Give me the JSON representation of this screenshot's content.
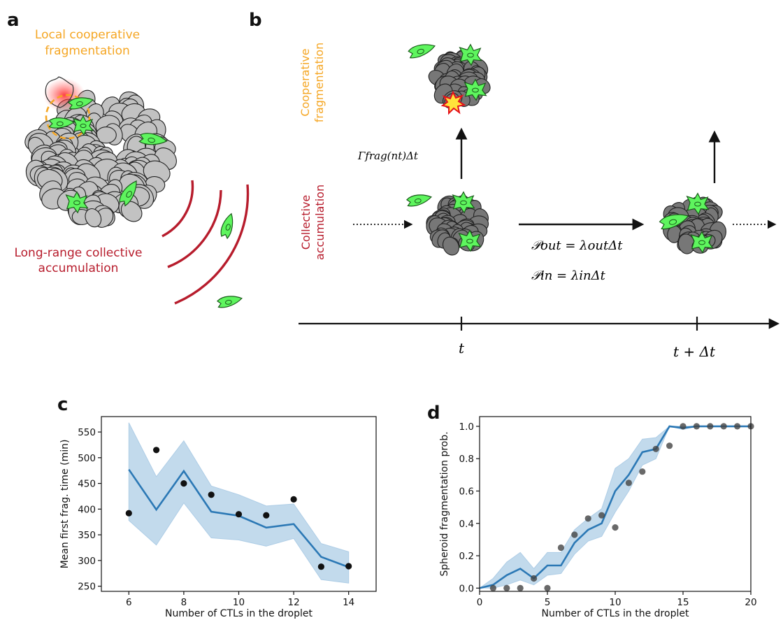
{
  "panels": {
    "a": {
      "letter": "a",
      "label_top": [
        "Local cooperative",
        "fragmentation"
      ],
      "label_bottom": [
        "Long-range collective",
        "accumulation"
      ],
      "colors": {
        "orange": "#f5a623",
        "red": "#b71c2c",
        "cell": "#c2c2c2",
        "ctl": "#5ef55e"
      }
    },
    "b": {
      "letter": "b",
      "row_top": [
        "Cooperative",
        "fragmentation"
      ],
      "row_bottom": [
        "Collective",
        "accumulation"
      ],
      "rate_label": "Γfrag(nt)Δt",
      "p_out": "𝒫out = λoutΔt",
      "p_in": "𝒫in = λinΔt",
      "tick_t": "t",
      "tick_t_dt": "t + Δt",
      "colors": {
        "orange": "#f5a623",
        "red": "#b71c2c",
        "cell": "#777777"
      }
    },
    "c": {
      "letter": "c",
      "chart_data": {
        "type": "line",
        "xlabel": "Number of CTLs in the droplet",
        "ylabel": "Mean first frag. time (min)",
        "xlim": [
          5,
          15
        ],
        "ylim": [
          240,
          580
        ],
        "xticks": [
          6,
          8,
          10,
          12,
          14
        ],
        "yticks": [
          250,
          300,
          350,
          400,
          450,
          500,
          550
        ],
        "x": [
          6,
          7,
          8,
          9,
          10,
          11,
          12,
          13,
          14
        ],
        "line": [
          477,
          399,
          474,
          395,
          387,
          364,
          371,
          307,
          287
        ],
        "band_low": [
          378,
          330,
          412,
          344,
          340,
          328,
          343,
          263,
          256
        ],
        "band_high": [
          568,
          463,
          533,
          445,
          428,
          406,
          410,
          333,
          317
        ],
        "points": [
          392,
          515,
          450,
          428,
          390,
          388,
          419,
          288,
          289
        ],
        "colors": {
          "line": "#2b78b5",
          "band": "#aecde6",
          "points": "#111111"
        }
      }
    },
    "d": {
      "letter": "d",
      "chart_data": {
        "type": "line",
        "xlabel": "Number of CTLs in the droplet",
        "ylabel": "Spheroid fragmentation prob.",
        "xlim": [
          0,
          20
        ],
        "ylim": [
          -0.02,
          1.06
        ],
        "xticks": [
          0,
          5,
          10,
          15,
          20
        ],
        "yticks": [
          "0.0",
          "0.2",
          "0.4",
          "0.6",
          "0.8",
          "1.0"
        ],
        "x": [
          0,
          1,
          2,
          3,
          4,
          5,
          6,
          7,
          8,
          9,
          10,
          11,
          12,
          13,
          14,
          15,
          16,
          17,
          18,
          19,
          20
        ],
        "line": [
          0.0,
          0.02,
          0.08,
          0.12,
          0.06,
          0.14,
          0.14,
          0.28,
          0.36,
          0.4,
          0.6,
          0.7,
          0.84,
          0.86,
          1.0,
          0.99,
          1.0,
          1.0,
          1.0,
          1.0,
          1.0
        ],
        "band_low": [
          0.0,
          0.0,
          0.02,
          0.05,
          0.02,
          0.08,
          0.09,
          0.21,
          0.29,
          0.32,
          0.47,
          0.6,
          0.76,
          0.8,
          1.0,
          0.98,
          1.0,
          1.0,
          1.0,
          1.0,
          1.0
        ],
        "band_high": [
          0.0,
          0.06,
          0.16,
          0.22,
          0.12,
          0.22,
          0.22,
          0.36,
          0.43,
          0.49,
          0.74,
          0.8,
          0.92,
          0.93,
          1.0,
          1.0,
          1.0,
          1.0,
          1.0,
          1.0,
          1.0
        ],
        "points_x": [
          1,
          2,
          3,
          4,
          5,
          6,
          7,
          8,
          9,
          10,
          11,
          12,
          13,
          14,
          15,
          16,
          17,
          18,
          19,
          20
        ],
        "points": [
          0.0,
          0.0,
          0.0,
          0.06,
          0.0,
          0.25,
          0.33,
          0.43,
          0.45,
          0.375,
          0.65,
          0.72,
          0.86,
          0.88,
          1.0,
          1.0,
          1.0,
          1.0,
          1.0,
          1.0
        ],
        "colors": {
          "line": "#2b78b5",
          "band": "#aecde6",
          "points": "#444444"
        }
      }
    }
  }
}
